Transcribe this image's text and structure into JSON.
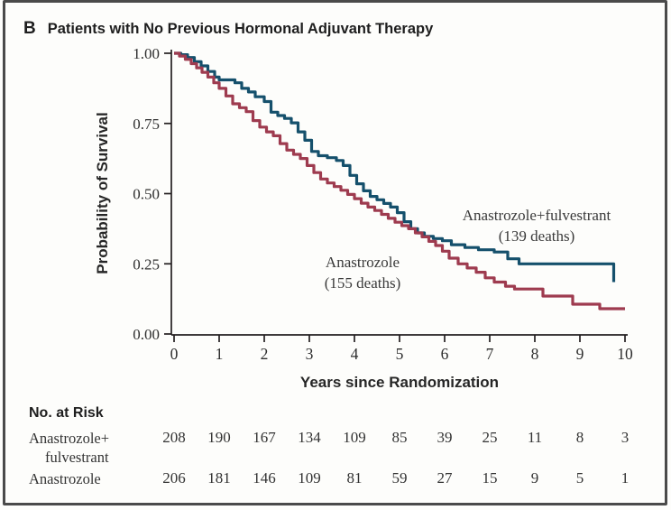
{
  "panel": {
    "letter": "B",
    "title": "Patients with No Previous Hormonal Adjuvant Therapy"
  },
  "chart_data": {
    "type": "line",
    "subtype": "kaplan-meier-step-curves",
    "title": "Patients with No Previous Hormonal Adjuvant Therapy",
    "xlabel": "Years since Randomization",
    "ylabel": "Probability of Survival",
    "xlim": [
      0,
      10
    ],
    "ylim": [
      0,
      1
    ],
    "grid": false,
    "xticks": [
      "0",
      "1",
      "2",
      "3",
      "4",
      "5",
      "6",
      "7",
      "8",
      "9",
      "10"
    ],
    "yticks": [
      "0.00",
      "0.25",
      "0.50",
      "0.75",
      "1.00"
    ],
    "axis_color": "#231f20",
    "series": [
      {
        "name": "Anastrozole+fulvestrant",
        "deaths_label": "(139 deaths)",
        "color": "#15506c",
        "points": [
          [
            0,
            1.0
          ],
          [
            0.15,
            0.995
          ],
          [
            0.3,
            0.985
          ],
          [
            0.45,
            0.97
          ],
          [
            0.6,
            0.955
          ],
          [
            0.75,
            0.935
          ],
          [
            0.9,
            0.915
          ],
          [
            1.0,
            0.905
          ],
          [
            1.35,
            0.895
          ],
          [
            1.5,
            0.875
          ],
          [
            1.65,
            0.862
          ],
          [
            1.8,
            0.845
          ],
          [
            2.0,
            0.828
          ],
          [
            2.15,
            0.79
          ],
          [
            2.3,
            0.778
          ],
          [
            2.45,
            0.768
          ],
          [
            2.6,
            0.752
          ],
          [
            2.75,
            0.72
          ],
          [
            2.9,
            0.69
          ],
          [
            3.05,
            0.65
          ],
          [
            3.2,
            0.635
          ],
          [
            3.4,
            0.628
          ],
          [
            3.6,
            0.618
          ],
          [
            3.75,
            0.6
          ],
          [
            3.9,
            0.565
          ],
          [
            4.05,
            0.535
          ],
          [
            4.2,
            0.51
          ],
          [
            4.35,
            0.49
          ],
          [
            4.5,
            0.478
          ],
          [
            4.65,
            0.465
          ],
          [
            4.8,
            0.452
          ],
          [
            4.95,
            0.432
          ],
          [
            5.1,
            0.4
          ],
          [
            5.25,
            0.375
          ],
          [
            5.4,
            0.36
          ],
          [
            5.55,
            0.348
          ],
          [
            5.75,
            0.34
          ],
          [
            5.95,
            0.332
          ],
          [
            6.15,
            0.318
          ],
          [
            6.45,
            0.308
          ],
          [
            6.75,
            0.3
          ],
          [
            7.1,
            0.292
          ],
          [
            7.4,
            0.268
          ],
          [
            7.65,
            0.25
          ],
          [
            9.75,
            0.185
          ]
        ]
      },
      {
        "name": "Anastrozole",
        "deaths_label": "(155 deaths)",
        "color": "#9e3b4f",
        "points": [
          [
            0,
            1.0
          ],
          [
            0.12,
            0.99
          ],
          [
            0.25,
            0.978
          ],
          [
            0.38,
            0.963
          ],
          [
            0.5,
            0.948
          ],
          [
            0.62,
            0.932
          ],
          [
            0.75,
            0.915
          ],
          [
            0.88,
            0.895
          ],
          [
            1.0,
            0.875
          ],
          [
            1.15,
            0.848
          ],
          [
            1.3,
            0.82
          ],
          [
            1.45,
            0.806
          ],
          [
            1.6,
            0.792
          ],
          [
            1.75,
            0.76
          ],
          [
            1.9,
            0.737
          ],
          [
            2.05,
            0.72
          ],
          [
            2.2,
            0.706
          ],
          [
            2.35,
            0.678
          ],
          [
            2.5,
            0.655
          ],
          [
            2.65,
            0.64
          ],
          [
            2.8,
            0.625
          ],
          [
            2.95,
            0.6
          ],
          [
            3.1,
            0.575
          ],
          [
            3.25,
            0.552
          ],
          [
            3.4,
            0.538
          ],
          [
            3.55,
            0.525
          ],
          [
            3.7,
            0.512
          ],
          [
            3.85,
            0.497
          ],
          [
            4.0,
            0.482
          ],
          [
            4.15,
            0.466
          ],
          [
            4.3,
            0.452
          ],
          [
            4.45,
            0.44
          ],
          [
            4.6,
            0.426
          ],
          [
            4.75,
            0.412
          ],
          [
            4.9,
            0.398
          ],
          [
            5.05,
            0.386
          ],
          [
            5.2,
            0.375
          ],
          [
            5.35,
            0.36
          ],
          [
            5.5,
            0.346
          ],
          [
            5.65,
            0.33
          ],
          [
            5.8,
            0.315
          ],
          [
            5.95,
            0.295
          ],
          [
            6.1,
            0.27
          ],
          [
            6.3,
            0.25
          ],
          [
            6.5,
            0.235
          ],
          [
            6.7,
            0.22
          ],
          [
            6.9,
            0.2
          ],
          [
            7.1,
            0.185
          ],
          [
            7.35,
            0.17
          ],
          [
            7.55,
            0.16
          ],
          [
            8.18,
            0.135
          ],
          [
            8.84,
            0.106
          ],
          [
            9.44,
            0.09
          ],
          [
            10.0,
            0.09
          ]
        ]
      }
    ],
    "at_risk": {
      "heading": "No. at Risk",
      "rows": [
        {
          "label_lines": [
            "Anastrozole+",
            "fulvestrant"
          ],
          "values": [
            208,
            190,
            167,
            134,
            109,
            85,
            39,
            25,
            11,
            8,
            3
          ]
        },
        {
          "label_lines": [
            "Anastrozole"
          ],
          "values": [
            206,
            181,
            146,
            109,
            81,
            59,
            27,
            15,
            9,
            5,
            1
          ]
        }
      ]
    }
  }
}
